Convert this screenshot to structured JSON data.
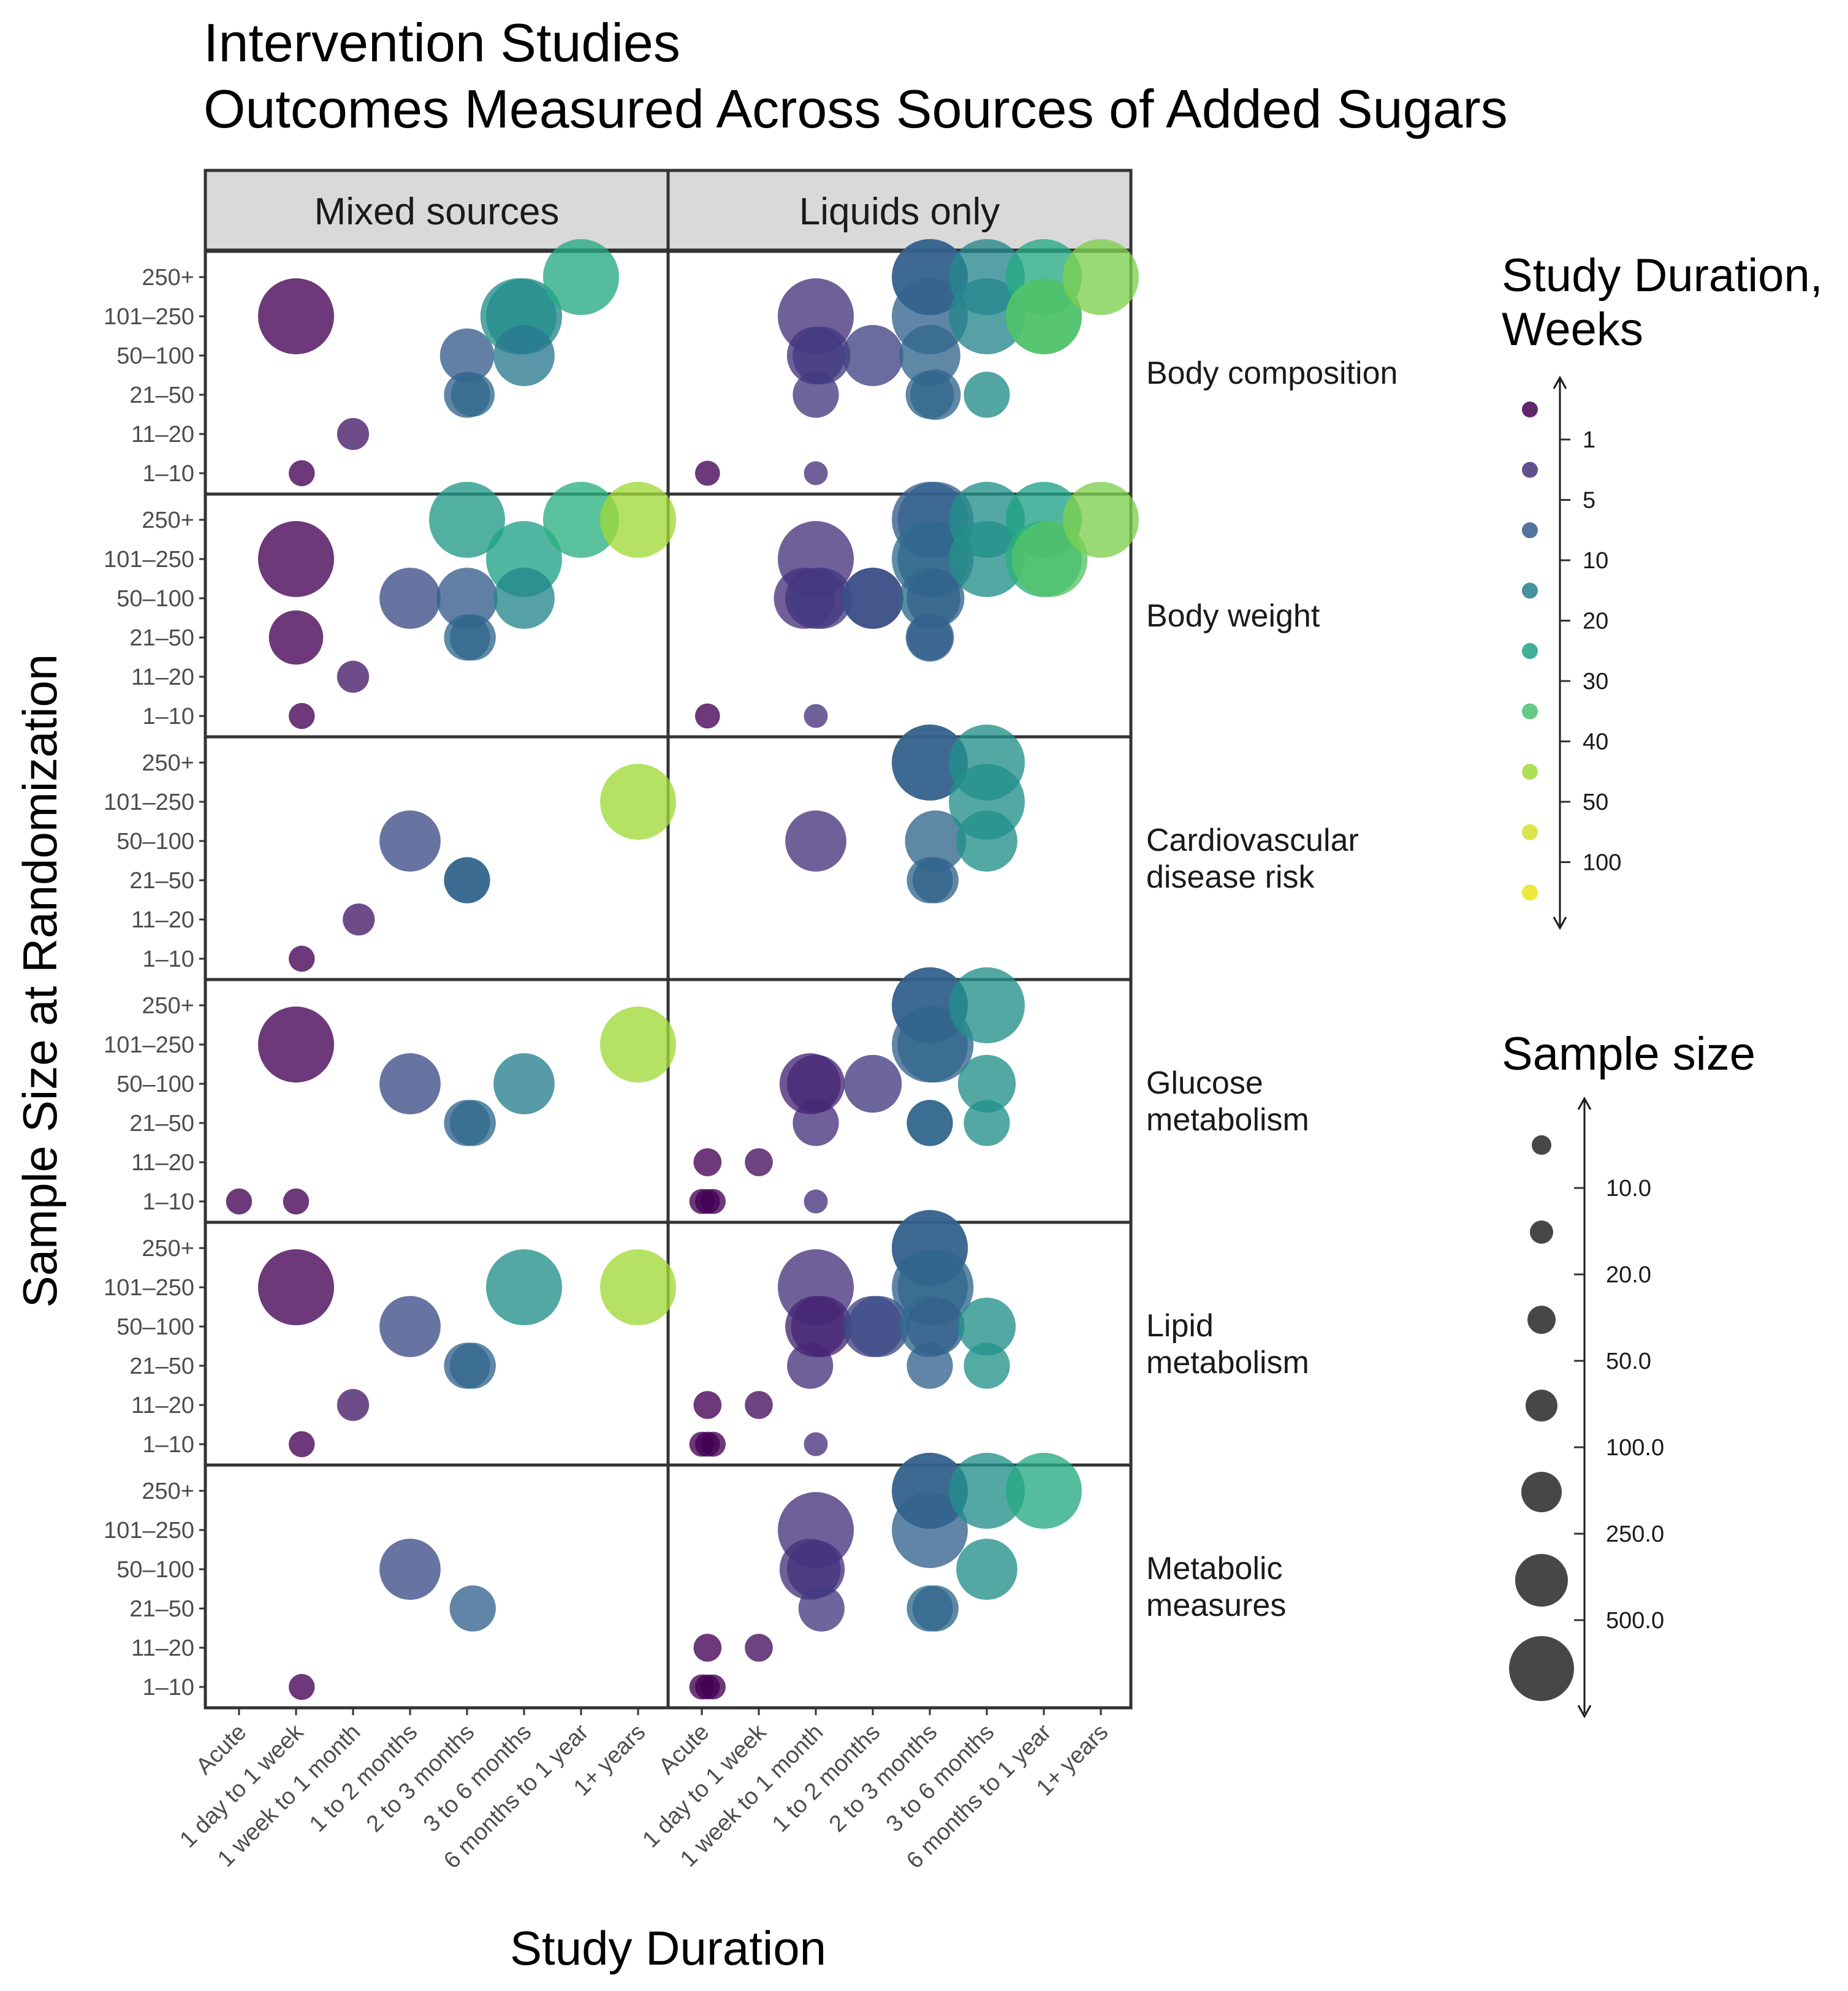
{
  "title_line1": "Intervention Studies",
  "title_line2": "Outcomes Measured Across Sources of Added Sugars",
  "chart_data": {
    "type": "scatter",
    "facet_columns": [
      "Mixed sources",
      "Liquids only"
    ],
    "facet_rows": [
      "Body composition",
      "Body weight",
      "Cardiovascular disease risk",
      "Glucose metabolism",
      "Lipid metabolism",
      "Metabolic measures"
    ],
    "facet_row_labels": [
      [
        "Body composition"
      ],
      [
        "Body weight"
      ],
      [
        "Cardiovascular",
        "disease risk"
      ],
      [
        "Glucose",
        "metabolism"
      ],
      [
        "Lipid",
        "metabolism"
      ],
      [
        "Metabolic",
        "measures"
      ]
    ],
    "x_categories": [
      "Acute",
      "1 day to 1 week",
      "1 week to 1 month",
      "1 to 2 months",
      "2 to 3 months",
      "3 to 6 months",
      "6 months to 1 year",
      "1+ years"
    ],
    "y_categories": [
      "1–10",
      "11–20",
      "21–50",
      "50–100",
      "101–250",
      "250+"
    ],
    "xlabel": "Study Duration",
    "ylabel": "Sample Size at Randomization",
    "color_legend": {
      "title_line1": "Study Duration,",
      "title_line2": "Weeks",
      "ticks": [
        "1",
        "5",
        "10",
        "20",
        "30",
        "40",
        "50",
        "100"
      ],
      "swatches": [
        "#440154",
        "#46337e",
        "#365c8d",
        "#277f8e",
        "#1fa187",
        "#4ac16d",
        "#a0da39",
        "#d4e12f",
        "#e8e419"
      ]
    },
    "size_legend": {
      "title": "Sample size",
      "ticks": [
        "10.0",
        "20.0",
        "50.0",
        "100.0",
        "250.0",
        "500.0"
      ],
      "keys": [
        5,
        12,
        30,
        70,
        160,
        380,
        700
      ]
    },
    "points_columns": [
      "facet_row",
      "facet_col",
      "x_index",
      "y_index",
      "duration_weeks",
      "sample_size"
    ],
    "points": [
      [
        0,
        0,
        1.0,
        4,
        1,
        200
      ],
      [
        0,
        0,
        2.0,
        1,
        3,
        15
      ],
      [
        0,
        0,
        1.1,
        0,
        1,
        8
      ],
      [
        0,
        0,
        4.0,
        3,
        10,
        60
      ],
      [
        0,
        0,
        4.0,
        2,
        12,
        40
      ],
      [
        0,
        0,
        4.1,
        2,
        14,
        35
      ],
      [
        0,
        0,
        5.0,
        4,
        22,
        180
      ],
      [
        0,
        0,
        4.9,
        4,
        25,
        150
      ],
      [
        0,
        0,
        5.0,
        3,
        18,
        80
      ],
      [
        0,
        0,
        6.0,
        5,
        35,
        500
      ],
      [
        0,
        1,
        0.1,
        0,
        0.5,
        7
      ],
      [
        0,
        1,
        2.0,
        0,
        5,
        6
      ],
      [
        0,
        1,
        2.0,
        4,
        5,
        150
      ],
      [
        0,
        1,
        2.0,
        3,
        5,
        70
      ],
      [
        0,
        1,
        2.1,
        3,
        6,
        70
      ],
      [
        0,
        1,
        2.0,
        2,
        6,
        40
      ],
      [
        0,
        1,
        3.0,
        3,
        7,
        80
      ],
      [
        0,
        1,
        4.0,
        5,
        10,
        400
      ],
      [
        0,
        1,
        4.0,
        5,
        12,
        300
      ],
      [
        0,
        1,
        4.0,
        4,
        12,
        200
      ],
      [
        0,
        1,
        4.0,
        3,
        13,
        80
      ],
      [
        0,
        1,
        4.1,
        2,
        13,
        50
      ],
      [
        0,
        1,
        4.0,
        2,
        13,
        45
      ],
      [
        0,
        1,
        5.0,
        5,
        22,
        300
      ],
      [
        0,
        1,
        5.0,
        4,
        22,
        180
      ],
      [
        0,
        1,
        5.0,
        2,
        24,
        40
      ],
      [
        0,
        1,
        6.0,
        5,
        35,
        350
      ],
      [
        0,
        1,
        6.0,
        4,
        45,
        200
      ],
      [
        0,
        1,
        6.0,
        4,
        55,
        160
      ],
      [
        0,
        1,
        7.0,
        5,
        80,
        450
      ],
      [
        1,
        0,
        1.0,
        4,
        1,
        200
      ],
      [
        1,
        0,
        1.0,
        2,
        1,
        60
      ],
      [
        1,
        0,
        1.1,
        0,
        1,
        8
      ],
      [
        1,
        0,
        2.0,
        1,
        3,
        15
      ],
      [
        1,
        0,
        3.0,
        3,
        8,
        80
      ],
      [
        1,
        0,
        4.0,
        3,
        10,
        80
      ],
      [
        1,
        0,
        4.0,
        2,
        14,
        40
      ],
      [
        1,
        0,
        4.1,
        2,
        13,
        40
      ],
      [
        1,
        0,
        4.0,
        5,
        28,
        500
      ],
      [
        1,
        0,
        5.0,
        4,
        30,
        200
      ],
      [
        1,
        0,
        5.0,
        3,
        22,
        80
      ],
      [
        1,
        0,
        6.0,
        5,
        40,
        600
      ],
      [
        1,
        0,
        7.0,
        5,
        100,
        700
      ],
      [
        1,
        1,
        0.1,
        0,
        0.5,
        7
      ],
      [
        1,
        1,
        2.0,
        0,
        5,
        6
      ],
      [
        1,
        1,
        2.0,
        4,
        5,
        180
      ],
      [
        1,
        1,
        1.8,
        3,
        5,
        80
      ],
      [
        1,
        1,
        2.0,
        3,
        5,
        80
      ],
      [
        1,
        1,
        2.1,
        3,
        6,
        80
      ],
      [
        1,
        1,
        3.0,
        3,
        9,
        80
      ],
      [
        1,
        1,
        3.0,
        3,
        8,
        80
      ],
      [
        1,
        1,
        4.0,
        5,
        10,
        400
      ],
      [
        1,
        1,
        4.1,
        5,
        12,
        300
      ],
      [
        1,
        1,
        4.0,
        4,
        15,
        200
      ],
      [
        1,
        1,
        4.1,
        4,
        13,
        180
      ],
      [
        1,
        1,
        4.0,
        3,
        14,
        80
      ],
      [
        1,
        1,
        4.1,
        3,
        12,
        70
      ],
      [
        1,
        1,
        4.0,
        2,
        12,
        45
      ],
      [
        1,
        1,
        4.0,
        2,
        11,
        40
      ],
      [
        1,
        1,
        5.0,
        5,
        25,
        400
      ],
      [
        1,
        1,
        5.0,
        4,
        25,
        200
      ],
      [
        1,
        1,
        6.0,
        5,
        30,
        350
      ],
      [
        1,
        1,
        6.0,
        4,
        40,
        160
      ],
      [
        1,
        1,
        6.1,
        4,
        55,
        150
      ],
      [
        1,
        1,
        7.0,
        5,
        80,
        500
      ],
      [
        2,
        0,
        1.1,
        0,
        1,
        8
      ],
      [
        2,
        0,
        2.1,
        1,
        3,
        15
      ],
      [
        2,
        0,
        3.0,
        3,
        8,
        80
      ],
      [
        2,
        0,
        4.0,
        2,
        10,
        40
      ],
      [
        2,
        0,
        4.0,
        2,
        13,
        40
      ],
      [
        2,
        0,
        7.0,
        4,
        100,
        180
      ],
      [
        2,
        1,
        2.0,
        3,
        5,
        80
      ],
      [
        2,
        1,
        4.0,
        5,
        10,
        500
      ],
      [
        2,
        1,
        4.0,
        5,
        12,
        350
      ],
      [
        2,
        1,
        4.1,
        3,
        13,
        80
      ],
      [
        2,
        1,
        4.0,
        2,
        14,
        40
      ],
      [
        2,
        1,
        4.1,
        2,
        12,
        40
      ],
      [
        2,
        1,
        5.0,
        5,
        25,
        400
      ],
      [
        2,
        1,
        5.0,
        4,
        25,
        200
      ],
      [
        2,
        1,
        5.0,
        3,
        25,
        80
      ],
      [
        3,
        0,
        0.0,
        0,
        0.5,
        8
      ],
      [
        3,
        0,
        1.0,
        0,
        1,
        8
      ],
      [
        3,
        0,
        1.0,
        4,
        1,
        220
      ],
      [
        3,
        0,
        3.0,
        3,
        8,
        80
      ],
      [
        3,
        0,
        4.0,
        2,
        12,
        40
      ],
      [
        3,
        0,
        4.1,
        2,
        14,
        40
      ],
      [
        3,
        0,
        5.0,
        3,
        20,
        80
      ],
      [
        3,
        0,
        7.0,
        4,
        100,
        180
      ],
      [
        3,
        1,
        0.0,
        0,
        0.5,
        7
      ],
      [
        3,
        1,
        0.1,
        0,
        0.4,
        7
      ],
      [
        3,
        1,
        0.2,
        0,
        0.3,
        7
      ],
      [
        3,
        1,
        0.1,
        1,
        1,
        10
      ],
      [
        3,
        1,
        1.0,
        1,
        2,
        10
      ],
      [
        3,
        1,
        2.0,
        0,
        5,
        6
      ],
      [
        3,
        1,
        2.0,
        2,
        5,
        40
      ],
      [
        3,
        1,
        1.9,
        3,
        4,
        80
      ],
      [
        3,
        1,
        2.0,
        3,
        4,
        70
      ],
      [
        3,
        1,
        3.0,
        3,
        6,
        70
      ],
      [
        3,
        1,
        4.0,
        5,
        10,
        500
      ],
      [
        3,
        1,
        4.0,
        5,
        12,
        350
      ],
      [
        3,
        1,
        4.0,
        4,
        12,
        200
      ],
      [
        3,
        1,
        4.1,
        4,
        13,
        160
      ],
      [
        3,
        1,
        4.0,
        2,
        12,
        40
      ],
      [
        3,
        1,
        4.0,
        2,
        13,
        40
      ],
      [
        3,
        1,
        5.0,
        5,
        25,
        400
      ],
      [
        3,
        1,
        5.0,
        3,
        25,
        70
      ],
      [
        3,
        1,
        5.0,
        2,
        25,
        40
      ],
      [
        4,
        0,
        1.1,
        0,
        1,
        8
      ],
      [
        4,
        0,
        2.0,
        1,
        3,
        15
      ],
      [
        4,
        0,
        1.0,
        4,
        1,
        220
      ],
      [
        4,
        0,
        3.0,
        3,
        8,
        80
      ],
      [
        4,
        0,
        4.0,
        2,
        12,
        40
      ],
      [
        4,
        0,
        4.1,
        2,
        13,
        40
      ],
      [
        4,
        0,
        5.0,
        4,
        25,
        200
      ],
      [
        4,
        0,
        7.0,
        4,
        100,
        200
      ],
      [
        4,
        1,
        0.0,
        0,
        0.4,
        7
      ],
      [
        4,
        1,
        0.1,
        0,
        0.3,
        7
      ],
      [
        4,
        1,
        0.2,
        0,
        0.4,
        7
      ],
      [
        4,
        1,
        0.1,
        1,
        1,
        10
      ],
      [
        4,
        1,
        1.0,
        1,
        2,
        10
      ],
      [
        4,
        1,
        2.0,
        0,
        5,
        6
      ],
      [
        4,
        1,
        1.9,
        2,
        5,
        40
      ],
      [
        4,
        1,
        2.0,
        4,
        5,
        180
      ],
      [
        4,
        1,
        2.0,
        3,
        4,
        80
      ],
      [
        4,
        1,
        2.1,
        3,
        4,
        80
      ],
      [
        4,
        1,
        3.0,
        3,
        7,
        80
      ],
      [
        4,
        1,
        3.1,
        3,
        8,
        80
      ],
      [
        4,
        1,
        4.0,
        5,
        10,
        500
      ],
      [
        4,
        1,
        4.0,
        5,
        12,
        350
      ],
      [
        4,
        1,
        4.0,
        4,
        12,
        200
      ],
      [
        4,
        1,
        4.1,
        4,
        13,
        180
      ],
      [
        4,
        1,
        4.0,
        3,
        14,
        80
      ],
      [
        4,
        1,
        4.1,
        3,
        11,
        70
      ],
      [
        4,
        1,
        4.0,
        2,
        12,
        40
      ],
      [
        4,
        1,
        5.0,
        3,
        25,
        70
      ],
      [
        4,
        1,
        5.0,
        2,
        26,
        40
      ],
      [
        5,
        0,
        1.1,
        0,
        1,
        8
      ],
      [
        5,
        0,
        3.0,
        3,
        8,
        80
      ],
      [
        5,
        0,
        4.1,
        2,
        12,
        40
      ],
      [
        5,
        1,
        0.0,
        0,
        0.4,
        7
      ],
      [
        5,
        1,
        0.1,
        0,
        0.3,
        7
      ],
      [
        5,
        1,
        0.2,
        0,
        0.3,
        7
      ],
      [
        5,
        1,
        0.1,
        1,
        1,
        10
      ],
      [
        5,
        1,
        1.0,
        1,
        2,
        10
      ],
      [
        5,
        1,
        2.0,
        4,
        5,
        180
      ],
      [
        5,
        1,
        1.9,
        3,
        5,
        80
      ],
      [
        5,
        1,
        2.0,
        3,
        5,
        70
      ],
      [
        5,
        1,
        2.1,
        2,
        6,
        40
      ],
      [
        5,
        1,
        4.0,
        5,
        10,
        500
      ],
      [
        5,
        1,
        4.0,
        5,
        12,
        350
      ],
      [
        5,
        1,
        4.0,
        4,
        12,
        200
      ],
      [
        5,
        1,
        4.0,
        2,
        14,
        40
      ],
      [
        5,
        1,
        4.1,
        2,
        13,
        40
      ],
      [
        5,
        1,
        5.0,
        5,
        25,
        400
      ],
      [
        5,
        1,
        5.0,
        3,
        25,
        80
      ],
      [
        5,
        1,
        6.0,
        5,
        35,
        350
      ]
    ]
  }
}
